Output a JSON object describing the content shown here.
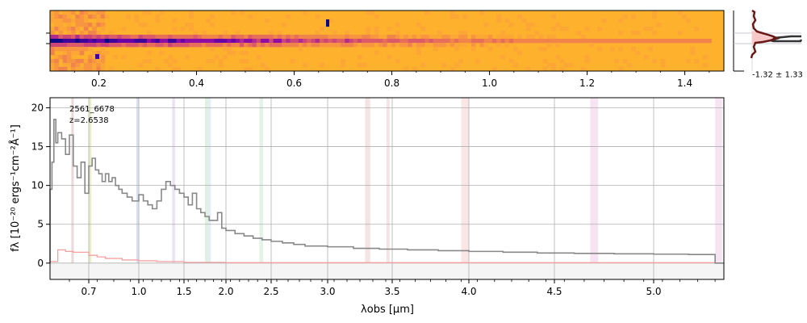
{
  "chart_data": [
    {
      "type": "heatmap",
      "title": "",
      "xticks": [
        "0.2",
        "0.4",
        "0.6",
        "0.8",
        "1.0",
        "1.2",
        "1.4"
      ],
      "xlim": [
        0.1,
        1.48
      ],
      "colormap": "plasma"
    },
    {
      "type": "line",
      "title": "",
      "annotation": "-1.32 ± 1.33"
    },
    {
      "type": "line",
      "xlabel": "λobs [μm]",
      "ylabel": "fλ [10⁻²⁰ ergs⁻¹cm⁻²Å⁻¹]",
      "ylim": [
        -2.1,
        21.3
      ],
      "xlim": [
        0.6,
        5.4
      ],
      "x_scale": "nonlinear",
      "xticks": [
        "0.7",
        "1.0",
        "1.5",
        "2.0",
        "2.5",
        "3.0",
        "3.5",
        "4.0",
        "4.5",
        "5.0"
      ],
      "yticks": [
        "0",
        "5",
        "10",
        "15",
        "20"
      ],
      "legend_lines": [
        "2561_6678",
        "z=2.6538"
      ],
      "grid": true,
      "series": [
        {
          "name": "flux",
          "color": "#888888",
          "x": [
            0.6,
            0.605,
            0.61,
            0.615,
            0.62,
            0.63,
            0.64,
            0.65,
            0.66,
            0.67,
            0.68,
            0.69,
            0.7,
            0.72,
            0.74,
            0.76,
            0.78,
            0.8,
            0.82,
            0.84,
            0.86,
            0.88,
            0.9,
            0.93,
            0.96,
            1.0,
            1.05,
            1.1,
            1.15,
            1.2,
            1.25,
            1.3,
            1.35,
            1.4,
            1.45,
            1.5,
            1.55,
            1.6,
            1.65,
            1.7,
            1.75,
            1.8,
            1.85,
            1.9,
            1.95,
            2.0,
            2.1,
            2.2,
            2.3,
            2.4,
            2.5,
            2.6,
            2.7,
            2.8,
            3.0,
            3.2,
            3.4,
            3.6,
            3.8,
            4.0,
            4.2,
            4.4,
            4.6,
            4.8,
            5.0,
            5.2,
            5.35
          ],
          "y": [
            9.5,
            13.0,
            18.5,
            15.5,
            16.8,
            16.0,
            14.0,
            16.5,
            12.5,
            11.0,
            13.0,
            9.0,
            12.5,
            13.5,
            12.0,
            11.5,
            10.5,
            11.5,
            10.5,
            11.0,
            10.0,
            9.5,
            9.0,
            8.5,
            8.0,
            8.8,
            8.0,
            7.5,
            7.0,
            8.0,
            9.5,
            10.5,
            10.0,
            9.5,
            9.0,
            8.5,
            7.5,
            9.0,
            7.0,
            6.5,
            6.0,
            5.5,
            5.5,
            6.5,
            4.5,
            4.2,
            3.8,
            3.5,
            3.2,
            3.0,
            2.8,
            2.6,
            2.4,
            2.2,
            2.1,
            1.9,
            1.8,
            1.7,
            1.6,
            1.5,
            1.4,
            1.3,
            1.25,
            1.2,
            1.15,
            1.1,
            1.0
          ]
        },
        {
          "name": "error",
          "color": "#f4a0a0",
          "x": [
            0.6,
            0.62,
            0.64,
            0.66,
            0.7,
            0.75,
            0.8,
            0.9,
            1.0,
            1.2,
            1.5,
            2.0,
            3.0,
            4.0,
            5.0,
            5.35
          ],
          "y": [
            0.2,
            1.7,
            1.5,
            1.4,
            1.0,
            0.8,
            0.6,
            0.4,
            0.3,
            0.2,
            0.1,
            0.05,
            0.05,
            0.05,
            0.05,
            0.05
          ]
        }
      ],
      "shaded_bands": [
        {
          "x0": 0.655,
          "x1": 0.66,
          "color": "#e3c7c7"
        },
        {
          "x0": 0.7,
          "x1": 0.706,
          "color": "#dfe6b0"
        },
        {
          "x0": 0.985,
          "x1": 0.995,
          "color": "#c9d4f0"
        },
        {
          "x0": 1.37,
          "x1": 1.4,
          "color": "#e1d6ec"
        },
        {
          "x0": 1.75,
          "x1": 1.79,
          "color": "#d6ead9"
        },
        {
          "x0": 1.79,
          "x1": 1.82,
          "color": "#d3e7f2"
        },
        {
          "x0": 2.37,
          "x1": 2.41,
          "color": "#d9efd9"
        },
        {
          "x0": 3.29,
          "x1": 3.33,
          "color": "#f0d9d9"
        },
        {
          "x0": 3.455,
          "x1": 3.48,
          "color": "#f0d9d9"
        },
        {
          "x0": 3.95,
          "x1": 4.0,
          "color": "#f9dcdc"
        },
        {
          "x0": 4.68,
          "x1": 4.72,
          "color": "#f4d9ec"
        },
        {
          "x0": 5.35,
          "x1": 5.39,
          "color": "#f4d9ec"
        }
      ]
    }
  ]
}
